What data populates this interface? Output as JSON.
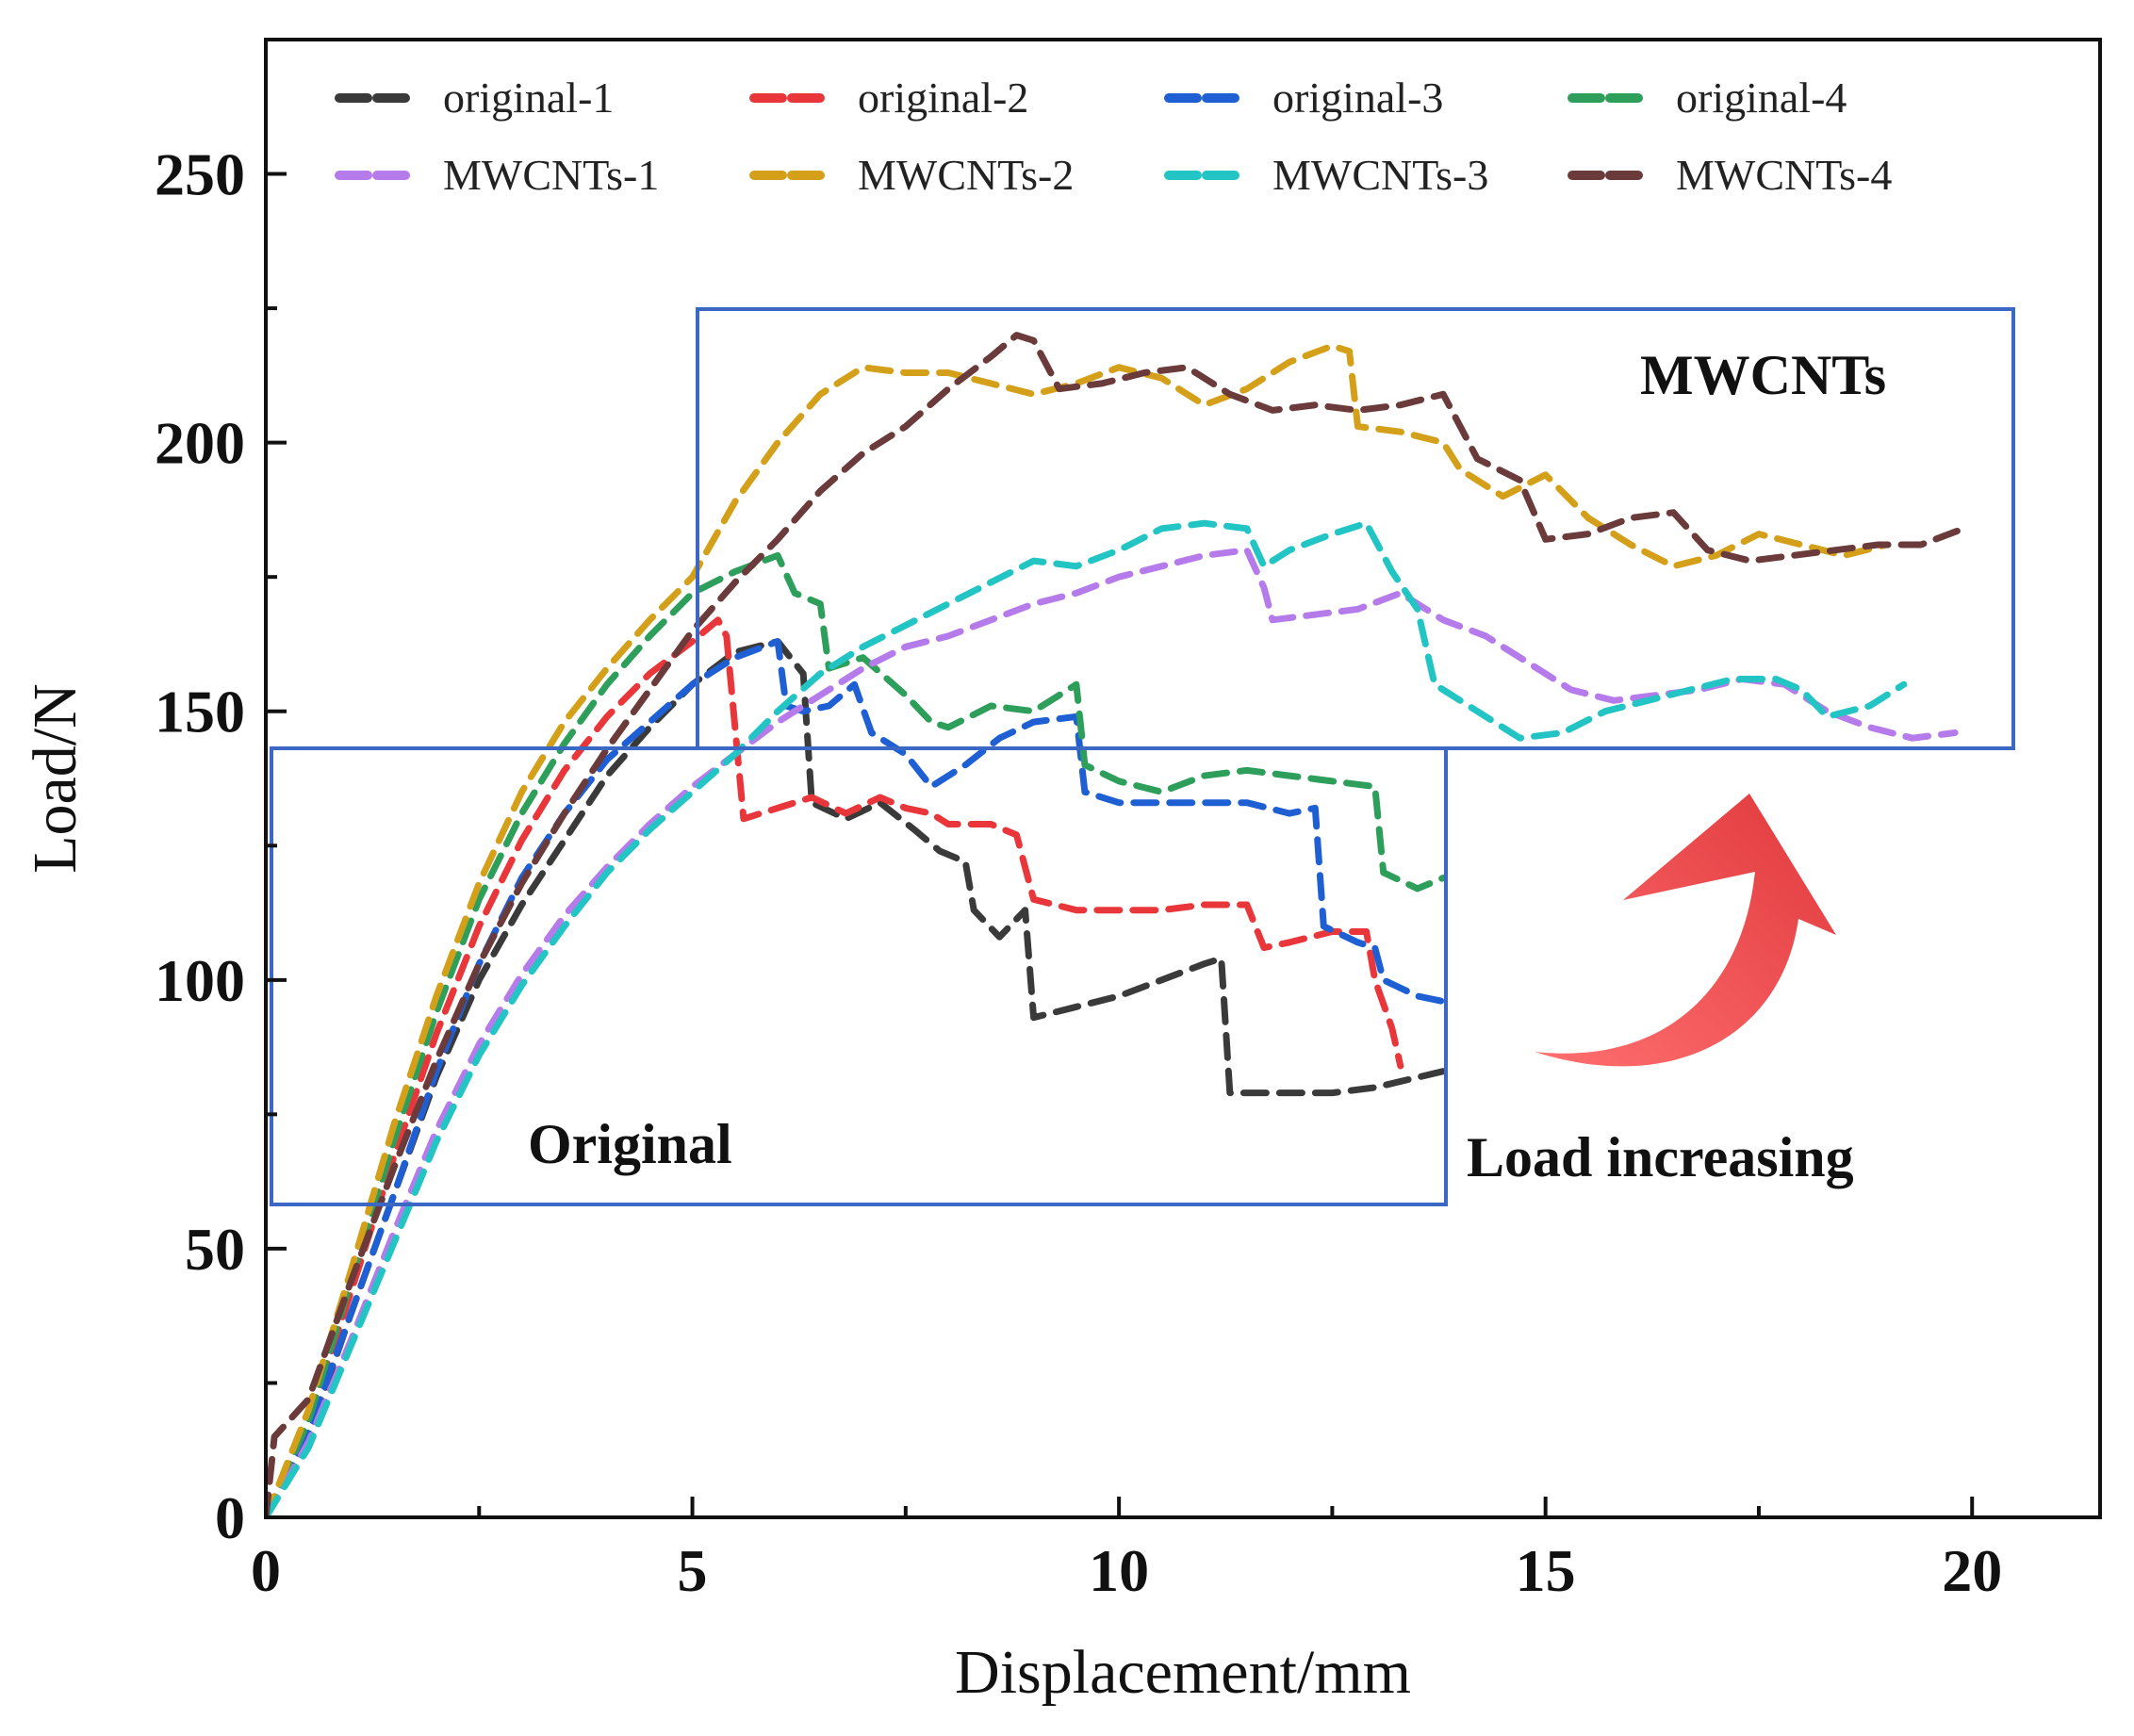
{
  "chart_data": {
    "type": "line",
    "title": "",
    "xlabel": "Displacement/mm",
    "ylabel": "Load/N",
    "xlim": [
      0,
      21.5
    ],
    "ylim": [
      0,
      275
    ],
    "xticks": [
      "0",
      "5",
      "10",
      "15",
      "20"
    ],
    "yticks": [
      "0",
      "50",
      "100",
      "150",
      "200",
      "250"
    ],
    "grid": false,
    "legend_position": "top",
    "series": [
      {
        "name": "original-1",
        "color": "#3a3a3a",
        "points": [
          [
            0,
            0
          ],
          [
            0.5,
            15
          ],
          [
            1.0,
            38
          ],
          [
            1.5,
            60
          ],
          [
            2,
            82
          ],
          [
            2.5,
            100
          ],
          [
            3,
            114
          ],
          [
            3.5,
            126
          ],
          [
            4,
            138
          ],
          [
            4.5,
            147
          ],
          [
            5,
            155
          ],
          [
            5.5,
            161
          ],
          [
            6,
            163
          ],
          [
            6.3,
            157
          ],
          [
            6.4,
            133
          ],
          [
            6.8,
            130
          ],
          [
            7.2,
            133
          ],
          [
            7.6,
            128
          ],
          [
            7.9,
            124
          ],
          [
            8.2,
            122
          ],
          [
            8.3,
            113
          ],
          [
            8.6,
            108
          ],
          [
            8.9,
            113
          ],
          [
            9.0,
            93
          ],
          [
            9.5,
            95
          ],
          [
            10,
            97
          ],
          [
            10.5,
            100
          ],
          [
            11,
            103
          ],
          [
            11.2,
            104
          ],
          [
            11.3,
            79
          ],
          [
            12,
            79
          ],
          [
            12.5,
            79
          ],
          [
            13,
            80
          ],
          [
            13.8,
            83
          ]
        ]
      },
      {
        "name": "original-2",
        "color": "#e8363b",
        "points": [
          [
            0,
            0
          ],
          [
            0.5,
            18
          ],
          [
            1,
            42
          ],
          [
            1.5,
            67
          ],
          [
            2,
            90
          ],
          [
            2.5,
            110
          ],
          [
            3,
            126
          ],
          [
            3.5,
            139
          ],
          [
            4,
            149
          ],
          [
            4.5,
            157
          ],
          [
            5,
            163
          ],
          [
            5.3,
            167
          ],
          [
            5.4,
            164
          ],
          [
            5.5,
            147
          ],
          [
            5.6,
            130
          ],
          [
            6,
            132
          ],
          [
            6.4,
            134
          ],
          [
            6.8,
            131
          ],
          [
            7.2,
            134
          ],
          [
            7.5,
            132
          ],
          [
            7.8,
            131
          ],
          [
            8,
            129
          ],
          [
            8.5,
            129
          ],
          [
            8.8,
            127
          ],
          [
            9,
            115
          ],
          [
            9.5,
            113
          ],
          [
            10,
            113
          ],
          [
            10.5,
            113
          ],
          [
            11,
            114
          ],
          [
            11.5,
            114
          ],
          [
            11.7,
            106
          ],
          [
            12,
            107
          ],
          [
            12.5,
            109
          ],
          [
            12.9,
            109
          ],
          [
            13,
            100
          ],
          [
            13.2,
            91
          ],
          [
            13.3,
            84
          ]
        ]
      },
      {
        "name": "original-3",
        "color": "#1f5fd4",
        "points": [
          [
            0,
            0
          ],
          [
            0.5,
            16
          ],
          [
            1,
            38
          ],
          [
            1.5,
            60
          ],
          [
            2,
            83
          ],
          [
            2.5,
            103
          ],
          [
            3,
            119
          ],
          [
            3.5,
            131
          ],
          [
            4,
            141
          ],
          [
            4.5,
            148
          ],
          [
            5,
            155
          ],
          [
            5.5,
            160
          ],
          [
            6,
            163
          ],
          [
            6.1,
            151
          ],
          [
            6.3,
            150
          ],
          [
            6.6,
            151
          ],
          [
            6.9,
            155
          ],
          [
            7.1,
            146
          ],
          [
            7.5,
            142
          ],
          [
            7.8,
            136
          ],
          [
            8.2,
            140
          ],
          [
            8.6,
            145
          ],
          [
            9,
            148
          ],
          [
            9.5,
            149
          ],
          [
            9.6,
            135
          ],
          [
            10,
            133
          ],
          [
            10.5,
            133
          ],
          [
            11,
            133
          ],
          [
            11.5,
            133
          ],
          [
            12,
            131
          ],
          [
            12.3,
            132
          ],
          [
            12.4,
            110
          ],
          [
            12.8,
            107
          ],
          [
            13,
            106
          ],
          [
            13.1,
            100
          ],
          [
            13.5,
            97
          ],
          [
            13.8,
            96
          ]
        ]
      },
      {
        "name": "original-4",
        "color": "#2e9e5b",
        "points": [
          [
            0,
            0
          ],
          [
            0.5,
            18
          ],
          [
            1,
            44
          ],
          [
            1.5,
            70
          ],
          [
            2,
            94
          ],
          [
            2.5,
            115
          ],
          [
            3,
            131
          ],
          [
            3.5,
            144
          ],
          [
            4,
            155
          ],
          [
            4.5,
            164
          ],
          [
            5,
            172
          ],
          [
            5.5,
            176
          ],
          [
            6,
            179
          ],
          [
            6.2,
            172
          ],
          [
            6.5,
            170
          ],
          [
            6.6,
            158
          ],
          [
            7,
            160
          ],
          [
            7.5,
            153
          ],
          [
            7.8,
            148
          ],
          [
            8,
            147
          ],
          [
            8.5,
            151
          ],
          [
            9,
            150
          ],
          [
            9.5,
            155
          ],
          [
            9.6,
            140
          ],
          [
            10,
            137
          ],
          [
            10.5,
            135
          ],
          [
            11,
            138
          ],
          [
            11.5,
            139
          ],
          [
            12,
            138
          ],
          [
            12.5,
            137
          ],
          [
            13,
            136
          ],
          [
            13.1,
            120
          ],
          [
            13.5,
            117
          ],
          [
            13.8,
            119
          ]
        ]
      },
      {
        "name": "MWCNTs-1",
        "color": "#b57bea",
        "points": [
          [
            0,
            0
          ],
          [
            0.5,
            14
          ],
          [
            1,
            33
          ],
          [
            1.5,
            53
          ],
          [
            2,
            72
          ],
          [
            2.5,
            88
          ],
          [
            3,
            101
          ],
          [
            3.5,
            112
          ],
          [
            4,
            121
          ],
          [
            4.5,
            129
          ],
          [
            5,
            136
          ],
          [
            5.5,
            142
          ],
          [
            6,
            148
          ],
          [
            6.5,
            153
          ],
          [
            7,
            158
          ],
          [
            7.5,
            162
          ],
          [
            8,
            164
          ],
          [
            8.5,
            167
          ],
          [
            9,
            170
          ],
          [
            9.5,
            172
          ],
          [
            10,
            175
          ],
          [
            10.5,
            177
          ],
          [
            11,
            179
          ],
          [
            11.5,
            180
          ],
          [
            11.7,
            173
          ],
          [
            11.8,
            167
          ],
          [
            12.3,
            168
          ],
          [
            12.8,
            169
          ],
          [
            13.3,
            172
          ],
          [
            13.8,
            167
          ],
          [
            14.3,
            164
          ],
          [
            14.8,
            159
          ],
          [
            15.3,
            154
          ],
          [
            15.8,
            152
          ],
          [
            16.3,
            153
          ],
          [
            16.8,
            154
          ],
          [
            17.3,
            156
          ],
          [
            17.8,
            155
          ],
          [
            18.3,
            150
          ],
          [
            18.8,
            147
          ],
          [
            19.3,
            145
          ],
          [
            19.8,
            146
          ]
        ]
      },
      {
        "name": "MWCNTs-2",
        "color": "#d4a019",
        "points": [
          [
            0,
            0
          ],
          [
            0.5,
            20
          ],
          [
            1,
            46
          ],
          [
            1.5,
            73
          ],
          [
            2,
            97
          ],
          [
            2.5,
            118
          ],
          [
            3,
            135
          ],
          [
            3.5,
            148
          ],
          [
            4,
            158
          ],
          [
            4.5,
            167
          ],
          [
            5,
            175
          ],
          [
            5.5,
            189
          ],
          [
            6,
            200
          ],
          [
            6.5,
            209
          ],
          [
            7,
            214
          ],
          [
            7.5,
            213
          ],
          [
            8,
            213
          ],
          [
            8.5,
            211
          ],
          [
            9,
            209
          ],
          [
            9.5,
            211
          ],
          [
            10,
            214
          ],
          [
            10.5,
            212
          ],
          [
            11,
            207
          ],
          [
            11.5,
            210
          ],
          [
            12,
            215
          ],
          [
            12.5,
            218
          ],
          [
            12.7,
            217
          ],
          [
            12.8,
            203
          ],
          [
            13.3,
            202
          ],
          [
            13.8,
            200
          ],
          [
            14,
            195
          ],
          [
            14.5,
            190
          ],
          [
            15,
            194
          ],
          [
            15.5,
            186
          ],
          [
            16,
            181
          ],
          [
            16.5,
            177
          ],
          [
            17,
            179
          ],
          [
            17.5,
            183
          ],
          [
            18,
            181
          ],
          [
            18.5,
            179
          ],
          [
            19,
            181
          ]
        ]
      },
      {
        "name": "MWCNTs-3",
        "color": "#22c4c4",
        "points": [
          [
            0,
            0
          ],
          [
            0.5,
            13
          ],
          [
            1,
            32
          ],
          [
            1.5,
            51
          ],
          [
            2,
            70
          ],
          [
            2.5,
            86
          ],
          [
            3,
            99
          ],
          [
            3.5,
            110
          ],
          [
            4,
            120
          ],
          [
            4.5,
            128
          ],
          [
            5,
            135
          ],
          [
            5.5,
            142
          ],
          [
            6,
            150
          ],
          [
            6.5,
            157
          ],
          [
            7,
            162
          ],
          [
            7.5,
            166
          ],
          [
            8,
            170
          ],
          [
            8.5,
            174
          ],
          [
            9,
            178
          ],
          [
            9.5,
            177
          ],
          [
            10,
            180
          ],
          [
            10.5,
            184
          ],
          [
            11,
            185
          ],
          [
            11.5,
            184
          ],
          [
            11.7,
            177
          ],
          [
            12,
            180
          ],
          [
            12.5,
            183
          ],
          [
            12.9,
            185
          ],
          [
            13.2,
            176
          ],
          [
            13.5,
            169
          ],
          [
            13.7,
            155
          ],
          [
            14.2,
            150
          ],
          [
            14.7,
            145
          ],
          [
            15.2,
            146
          ],
          [
            15.7,
            150
          ],
          [
            16.2,
            152
          ],
          [
            16.7,
            154
          ],
          [
            17.2,
            156
          ],
          [
            17.7,
            156
          ],
          [
            18,
            154
          ],
          [
            18.3,
            149
          ],
          [
            18.8,
            151
          ],
          [
            19.2,
            155
          ]
        ]
      },
      {
        "name": "MWCNTs-4",
        "color": "#6b3a3a",
        "points": [
          [
            0,
            0
          ],
          [
            0.1,
            15
          ],
          [
            0.5,
            22
          ],
          [
            1,
            44
          ],
          [
            1.5,
            65
          ],
          [
            2,
            85
          ],
          [
            2.5,
            103
          ],
          [
            3,
            118
          ],
          [
            3.5,
            131
          ],
          [
            4,
            143
          ],
          [
            4.5,
            154
          ],
          [
            5,
            165
          ],
          [
            5.5,
            174
          ],
          [
            6,
            182
          ],
          [
            6.5,
            191
          ],
          [
            7,
            198
          ],
          [
            7.5,
            203
          ],
          [
            8,
            210
          ],
          [
            8.5,
            216
          ],
          [
            8.8,
            220
          ],
          [
            9,
            219
          ],
          [
            9.3,
            210
          ],
          [
            9.8,
            211
          ],
          [
            10.3,
            213
          ],
          [
            10.8,
            214
          ],
          [
            11.3,
            209
          ],
          [
            11.8,
            206
          ],
          [
            12.3,
            207
          ],
          [
            12.8,
            206
          ],
          [
            13.3,
            207
          ],
          [
            13.8,
            209
          ],
          [
            14.2,
            197
          ],
          [
            14.7,
            193
          ],
          [
            15,
            182
          ],
          [
            15.5,
            183
          ],
          [
            16,
            186
          ],
          [
            16.5,
            187
          ],
          [
            16.9,
            180
          ],
          [
            17.4,
            178
          ],
          [
            17.9,
            179
          ],
          [
            18.4,
            180
          ],
          [
            18.9,
            181
          ],
          [
            19.4,
            181
          ],
          [
            19.9,
            184
          ]
        ]
      }
    ],
    "annotations": [
      "MWCNTs",
      "Original",
      "Load increasing"
    ]
  }
}
